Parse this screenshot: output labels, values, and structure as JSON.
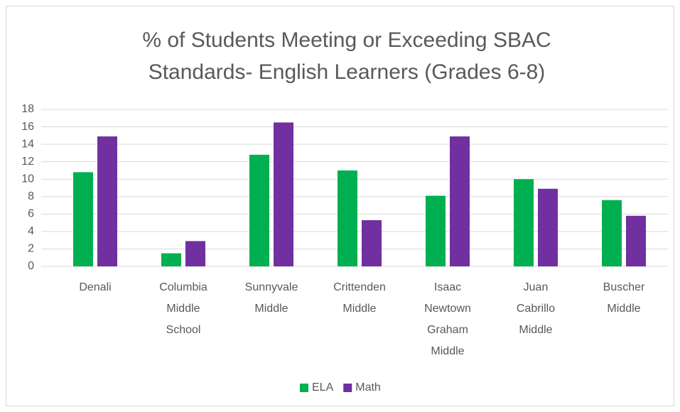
{
  "chart_data": {
    "type": "bar",
    "title": "% of Students Meeting or Exceeding SBAC",
    "subtitle": "Standards- English Learners (Grades 6-8)",
    "categories": [
      "Denali",
      "Columbia Middle School",
      "Sunnyvale Middle",
      "Crittenden Middle",
      "Isaac Newtown Graham Middle",
      "Juan Cabrillo Middle",
      "Buscher Middle"
    ],
    "series": [
      {
        "name": "ELA",
        "color": "#00b050",
        "values": [
          10.8,
          1.5,
          12.8,
          11.0,
          8.1,
          10.0,
          7.6
        ]
      },
      {
        "name": "Math",
        "color": "#7030a0",
        "values": [
          14.9,
          2.9,
          16.5,
          5.3,
          14.9,
          8.9,
          5.8
        ]
      }
    ],
    "ylim": [
      0,
      18
    ],
    "yticks": [
      0,
      2,
      4,
      6,
      8,
      10,
      12,
      14,
      16,
      18
    ],
    "grid": true,
    "legend": "bottom"
  }
}
